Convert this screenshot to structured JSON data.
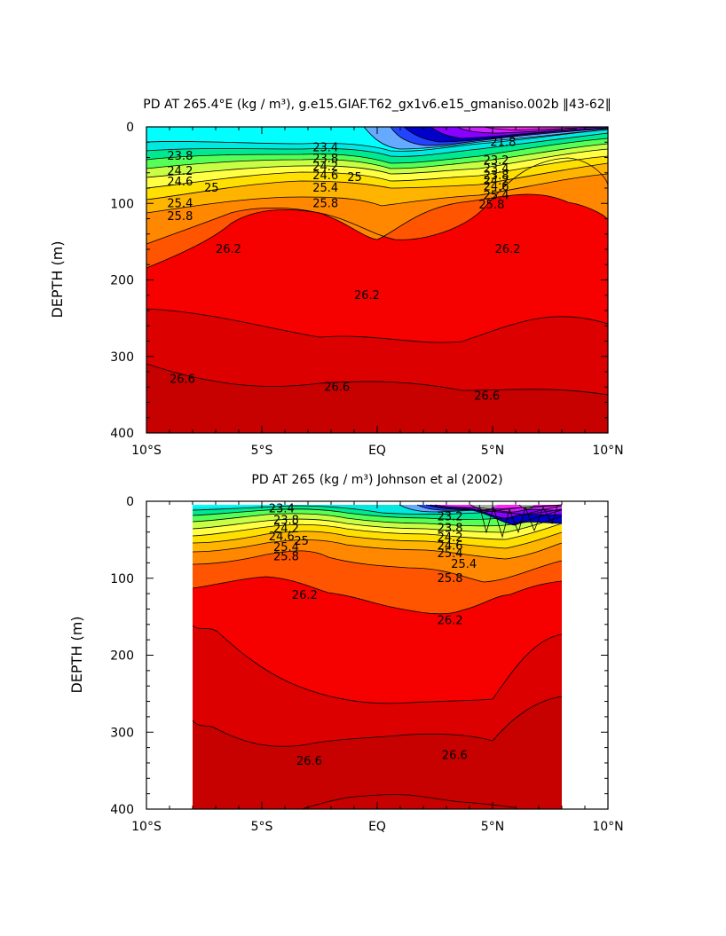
{
  "chart_data": [
    {
      "type": "heatmap",
      "title": "PD AT 265.4°E (kg / m³), g.e15.GIAF.T62_gx1v6.e15_gmaniso.002b ‖43-62‖",
      "xlabel": "",
      "ylabel": "DEPTH (m)",
      "xlim": [
        -10,
        10
      ],
      "ylim": [
        0,
        400
      ],
      "y_inverted": true,
      "xticks": [
        "10°S",
        "5°S",
        "EQ",
        "5°N",
        "10°N"
      ],
      "yticks": [
        "0",
        "100",
        "200",
        "300",
        "400"
      ],
      "data_extent_x": [
        -10,
        10
      ],
      "contour_labels": [
        {
          "text": "23.8",
          "x": -9.1,
          "y": 38
        },
        {
          "text": "24.2",
          "x": -9.1,
          "y": 58
        },
        {
          "text": "24.6",
          "x": -9.1,
          "y": 72
        },
        {
          "text": "25",
          "x": -7.5,
          "y": 80
        },
        {
          "text": "25.4",
          "x": -9.1,
          "y": 100
        },
        {
          "text": "25.8",
          "x": -9.1,
          "y": 117
        },
        {
          "text": "26.2",
          "x": -7.0,
          "y": 160
        },
        {
          "text": "26.2",
          "x": -1.0,
          "y": 220
        },
        {
          "text": "26.2",
          "x": 5.1,
          "y": 160
        },
        {
          "text": "26.6",
          "x": -9.0,
          "y": 330
        },
        {
          "text": "26.6",
          "x": -2.3,
          "y": 340
        },
        {
          "text": "26.6",
          "x": 4.2,
          "y": 352
        },
        {
          "text": "23.4",
          "x": -2.8,
          "y": 27
        },
        {
          "text": "23.8",
          "x": -2.8,
          "y": 42
        },
        {
          "text": "24.2",
          "x": -2.8,
          "y": 52
        },
        {
          "text": "24.6",
          "x": -2.8,
          "y": 64
        },
        {
          "text": "25",
          "x": -1.3,
          "y": 66
        },
        {
          "text": "25.4",
          "x": -2.8,
          "y": 80
        },
        {
          "text": "25.8",
          "x": -2.8,
          "y": 100
        },
        {
          "text": "21.8",
          "x": 4.9,
          "y": 20
        },
        {
          "text": "23.2",
          "x": 4.6,
          "y": 44
        },
        {
          "text": "23.4",
          "x": 4.6,
          "y": 55
        },
        {
          "text": "23.8",
          "x": 4.6,
          "y": 64
        },
        {
          "text": "24.2",
          "x": 4.6,
          "y": 71
        },
        {
          "text": "24.6",
          "x": 4.6,
          "y": 78
        },
        {
          "text": "25.4",
          "x": 4.6,
          "y": 90
        },
        {
          "text": "25.8",
          "x": 4.4,
          "y": 102
        }
      ]
    },
    {
      "type": "heatmap",
      "title": "PD AT 265 (kg / m³) Johnson et al (2002)",
      "xlabel": "",
      "ylabel": "DEPTH (m)",
      "xlim": [
        -10,
        10
      ],
      "ylim": [
        0,
        400
      ],
      "y_inverted": true,
      "xticks": [
        "10°S",
        "5°S",
        "EQ",
        "5°N",
        "10°N"
      ],
      "yticks": [
        "0",
        "100",
        "200",
        "300",
        "400"
      ],
      "data_extent_x": [
        -8,
        8
      ],
      "contour_labels": [
        {
          "text": "23.4",
          "x": -4.7,
          "y": 10
        },
        {
          "text": "23.8",
          "x": -4.5,
          "y": 25
        },
        {
          "text": "24.2",
          "x": -4.5,
          "y": 36
        },
        {
          "text": "24.6",
          "x": -4.7,
          "y": 46
        },
        {
          "text": "25",
          "x": -3.6,
          "y": 52
        },
        {
          "text": "25.4",
          "x": -4.5,
          "y": 60
        },
        {
          "text": "25.8",
          "x": -4.5,
          "y": 72
        },
        {
          "text": "26.2",
          "x": -3.7,
          "y": 122
        },
        {
          "text": "26.2",
          "x": 2.6,
          "y": 155
        },
        {
          "text": "26.6",
          "x": -3.5,
          "y": 338
        },
        {
          "text": "26.6",
          "x": 2.8,
          "y": 330
        },
        {
          "text": "23.2",
          "x": 2.6,
          "y": 20
        },
        {
          "text": "23.8",
          "x": 2.6,
          "y": 35
        },
        {
          "text": "24.2",
          "x": 2.6,
          "y": 47
        },
        {
          "text": "24.6",
          "x": 2.6,
          "y": 58
        },
        {
          "text": "25.4",
          "x": 2.6,
          "y": 68
        },
        {
          "text": "25.4",
          "x": 3.2,
          "y": 82
        },
        {
          "text": "25.8",
          "x": 2.6,
          "y": 100
        }
      ]
    }
  ],
  "colors": {
    "c268": "#c70000",
    "c264": "#dc0000",
    "c262": "#f70000",
    "c258": "#ff5500",
    "c254": "#ff8800",
    "c250": "#ffb400",
    "c246": "#ffe000",
    "c242": "#ffff44",
    "c238": "#c8ff44",
    "c234": "#55ff55",
    "c230": "#00e890",
    "c226": "#00e8e0",
    "c222": "#00ffff",
    "c218": "#66aaff",
    "c214": "#2244ff",
    "c210": "#0000c8",
    "c206": "#8800ff",
    "c202": "#cc22ff",
    "c198": "#ff22ff",
    "gray": "#aaaaaa"
  }
}
